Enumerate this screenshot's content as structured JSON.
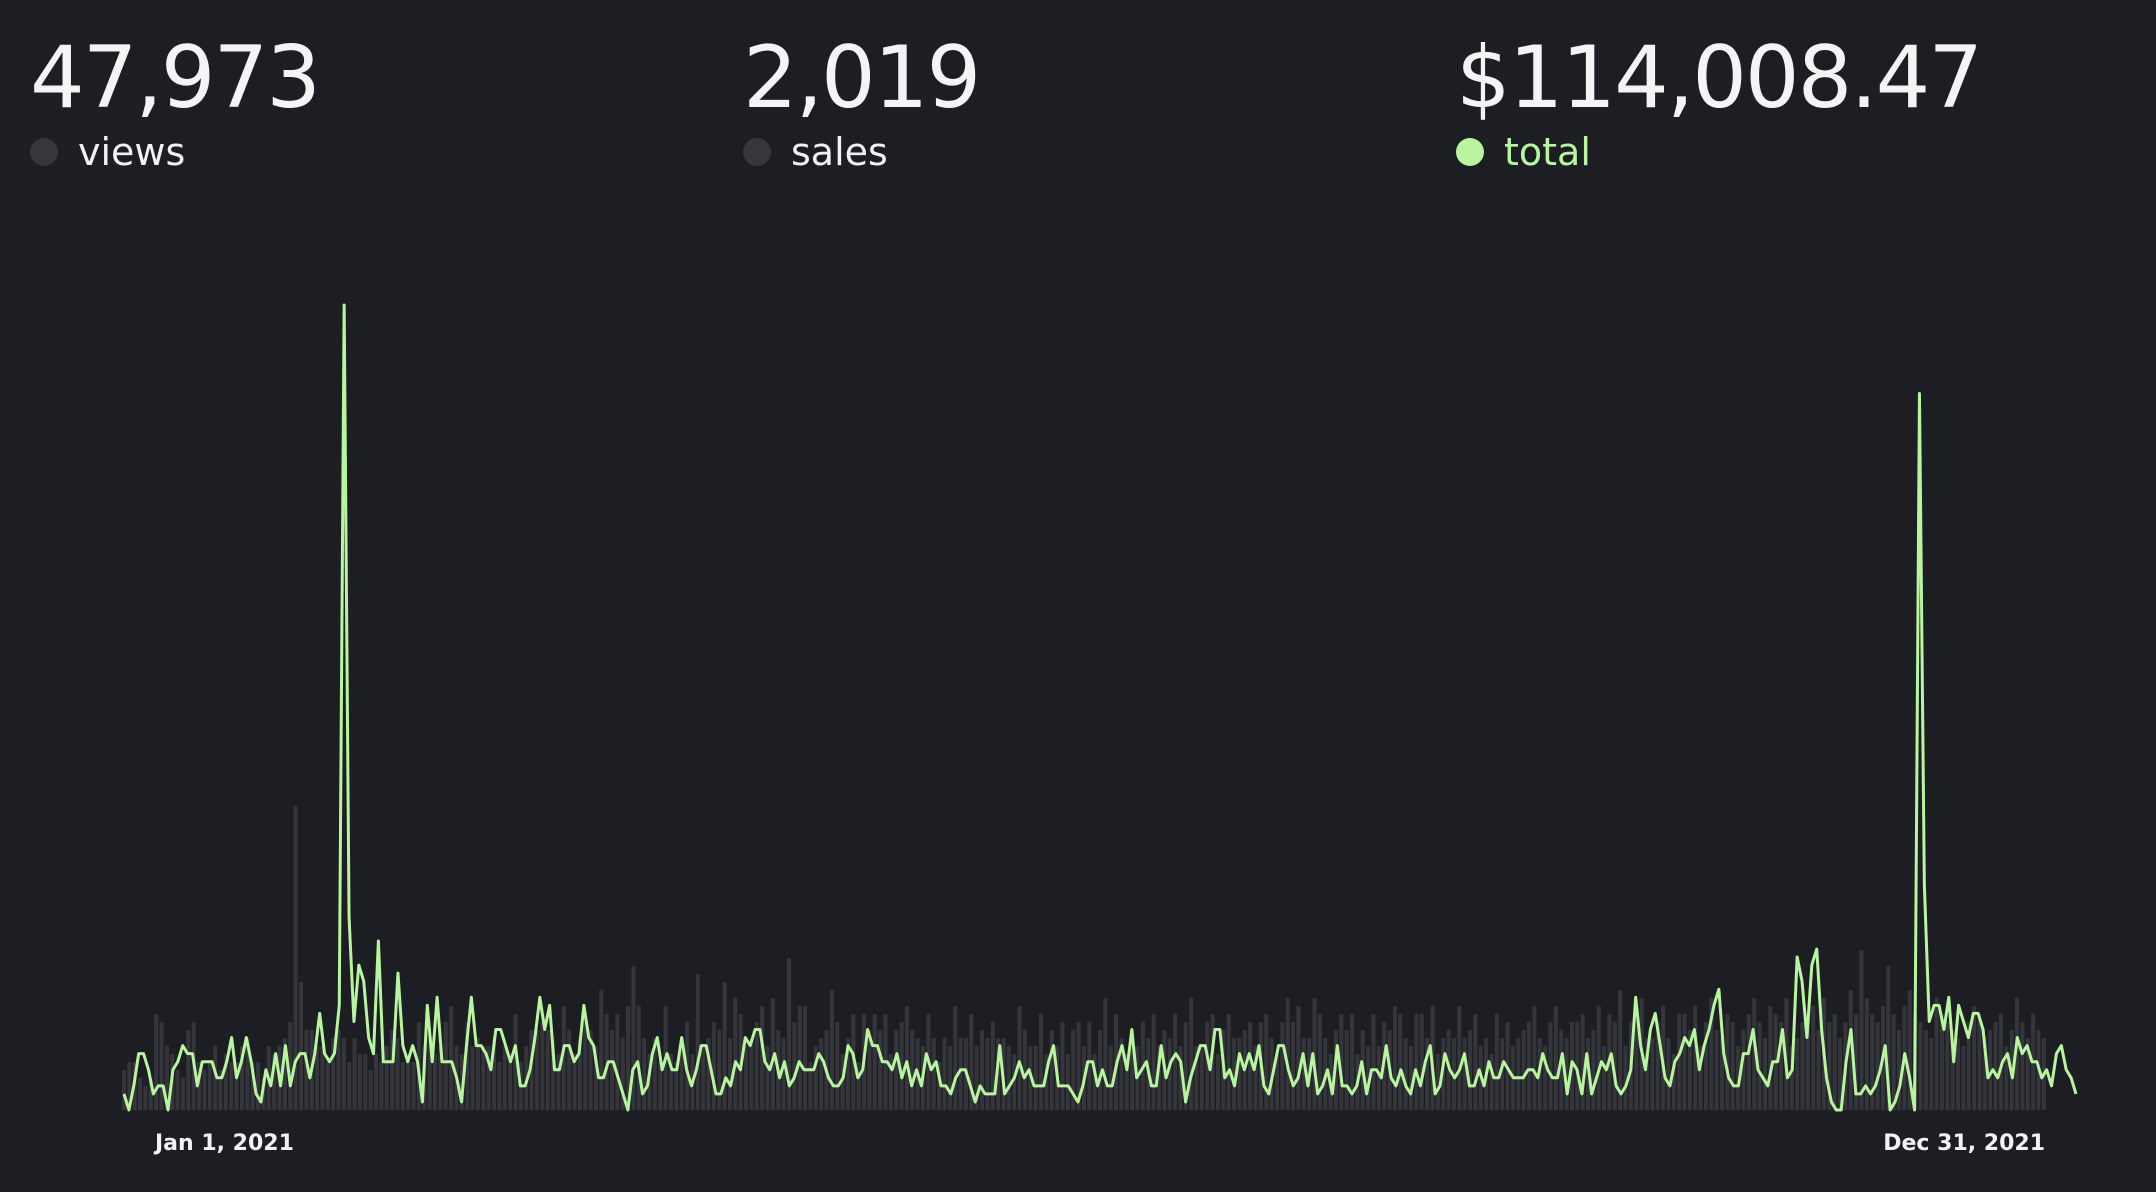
{
  "stats": [
    {
      "value": "47,973",
      "label": "views",
      "active": false
    },
    {
      "value": "2,019",
      "label": "sales",
      "active": false
    },
    {
      "value": "$114,008.47",
      "label": "total",
      "active": true
    }
  ],
  "colors": {
    "background": "#1c1e23",
    "inactive_dot": "#35373d",
    "accent": "#b9f59f",
    "bars": "#34363b",
    "text": "#f2f2f2"
  },
  "chart_data": {
    "type": "bar+line",
    "title": "",
    "x_range": [
      "Jan 1, 2021",
      "Dec 31, 2021"
    ],
    "x_tick_labels": [
      "Jan 1, 2021",
      "Dec 31, 2021"
    ],
    "grid": false,
    "days": 365,
    "views_bars": [
      5,
      6,
      6,
      4,
      3,
      4,
      12,
      11,
      8,
      7,
      5,
      4,
      10,
      11,
      6,
      5,
      6,
      8,
      5,
      7,
      6,
      6,
      8,
      9,
      6,
      6,
      4,
      8,
      7,
      8,
      9,
      11,
      38,
      16,
      10,
      10,
      8,
      8,
      6,
      9,
      10,
      9,
      6,
      9,
      7,
      7,
      5,
      7,
      6,
      8,
      10,
      9,
      6,
      7,
      6,
      11,
      8,
      9,
      7,
      8,
      11,
      13,
      8,
      7,
      11,
      8,
      9,
      8,
      8,
      9,
      6,
      8,
      6,
      12,
      6,
      8,
      10,
      10,
      11,
      10,
      9,
      7,
      13,
      10,
      7,
      9,
      12,
      10,
      8,
      15,
      12,
      10,
      12,
      9,
      13,
      18,
      13,
      9,
      7,
      9,
      6,
      13,
      7,
      6,
      8,
      11,
      7,
      17,
      8,
      9,
      11,
      10,
      16,
      9,
      14,
      12,
      8,
      9,
      11,
      13,
      8,
      14,
      10,
      9,
      19,
      11,
      13,
      13,
      6,
      8,
      9,
      10,
      15,
      11,
      7,
      9,
      12,
      6,
      12,
      10,
      12,
      10,
      12,
      7,
      10,
      11,
      13,
      10,
      9,
      8,
      12,
      9,
      6,
      9,
      8,
      13,
      9,
      9,
      12,
      8,
      10,
      9,
      11,
      9,
      9,
      8,
      7,
      13,
      10,
      8,
      8,
      12,
      7,
      10,
      8,
      11,
      7,
      10,
      11,
      8,
      11,
      7,
      10,
      14,
      8,
      12,
      9,
      7,
      10,
      8,
      11,
      9,
      12,
      8,
      10,
      9,
      12,
      8,
      11,
      14,
      8,
      8,
      11,
      12,
      7,
      10,
      12,
      9,
      9,
      10,
      11,
      8,
      11,
      12,
      9,
      7,
      11,
      14,
      11,
      13,
      9,
      9,
      14,
      12,
      9,
      7,
      10,
      12,
      10,
      12,
      7,
      10,
      8,
      12,
      8,
      11,
      10,
      13,
      12,
      9,
      8,
      12,
      12,
      9,
      13,
      7,
      9,
      10,
      9,
      13,
      9,
      10,
      12,
      8,
      9,
      7,
      12,
      9,
      11,
      8,
      9,
      10,
      11,
      13,
      9,
      8,
      11,
      13,
      10,
      9,
      11,
      11,
      12,
      9,
      10,
      13,
      8,
      12,
      11,
      15,
      8,
      11,
      12,
      14,
      9,
      9,
      11,
      13,
      9,
      7,
      12,
      12,
      10,
      13,
      8,
      11,
      14,
      10,
      9,
      12,
      11,
      8,
      10,
      12,
      14,
      11,
      9,
      13,
      12,
      11,
      14,
      8,
      9,
      11,
      12,
      13,
      10,
      14,
      11,
      12,
      9,
      11,
      15,
      12,
      20,
      14,
      12,
      11,
      13,
      18,
      12,
      10,
      13,
      15,
      12,
      11,
      10,
      9,
      14,
      12,
      11,
      10,
      9,
      8,
      11,
      13,
      12,
      9,
      10,
      11,
      12,
      8,
      10,
      14,
      11,
      9,
      12,
      10,
      9
    ],
    "total_line": [
      2,
      0,
      3,
      7,
      7,
      5,
      2,
      3,
      3,
      0,
      5,
      6,
      8,
      7,
      7,
      3,
      6,
      6,
      6,
      4,
      4,
      6,
      9,
      4,
      6,
      9,
      6,
      2,
      1,
      5,
      3,
      7,
      3,
      8,
      3,
      6,
      7,
      7,
      4,
      7,
      12,
      7,
      6,
      7,
      13,
      100,
      24,
      11,
      18,
      16,
      9,
      7,
      21,
      6,
      6,
      6,
      17,
      8,
      6,
      8,
      6,
      1,
      13,
      6,
      14,
      6,
      6,
      6,
      4,
      1,
      8,
      14,
      8,
      8,
      7,
      5,
      10,
      10,
      8,
      6,
      8,
      3,
      3,
      5,
      9,
      14,
      10,
      13,
      5,
      5,
      8,
      8,
      6,
      7,
      13,
      9,
      8,
      4,
      4,
      6,
      6,
      4,
      2,
      0,
      5,
      6,
      2,
      3,
      7,
      9,
      5,
      7,
      5,
      5,
      9,
      5,
      3,
      5,
      8,
      8,
      5,
      2,
      2,
      4,
      3,
      6,
      5,
      9,
      8,
      10,
      10,
      6,
      5,
      7,
      4,
      6,
      3,
      4,
      6,
      5,
      5,
      5,
      7,
      6,
      4,
      3,
      3,
      4,
      8,
      7,
      4,
      5,
      10,
      8,
      8,
      6,
      6,
      5,
      7,
      4,
      6,
      3,
      5,
      3,
      7,
      5,
      6,
      3,
      3,
      2,
      4,
      5,
      5,
      3,
      1,
      3,
      2,
      2,
      2,
      8,
      2,
      3,
      4,
      6,
      4,
      5,
      3,
      3,
      3,
      6,
      8,
      3,
      3,
      3,
      2,
      1,
      3,
      6,
      6,
      3,
      5,
      3,
      3,
      6,
      8,
      5,
      10,
      4,
      5,
      6,
      3,
      3,
      8,
      4,
      6,
      7,
      6,
      1,
      4,
      6,
      8,
      8,
      5,
      10,
      10,
      4,
      5,
      3,
      7,
      5,
      7,
      5,
      8,
      3,
      2,
      5,
      8,
      8,
      5,
      3,
      4,
      7,
      3,
      7,
      2,
      3,
      5,
      2,
      8,
      3,
      3,
      2,
      3,
      6,
      2,
      5,
      5,
      4,
      8,
      4,
      3,
      5,
      3,
      2,
      5,
      3,
      6,
      8,
      2,
      3,
      7,
      5,
      4,
      5,
      7,
      3,
      3,
      5,
      3,
      6,
      4,
      4,
      6,
      5,
      4,
      4,
      4,
      5,
      5,
      4,
      7,
      5,
      4,
      4,
      7,
      2,
      6,
      5,
      2,
      7,
      2,
      4,
      6,
      5,
      7,
      3,
      2,
      3,
      5,
      14,
      8,
      5,
      10,
      12,
      8,
      4,
      3,
      6,
      7,
      9,
      8,
      10,
      5,
      8,
      10,
      13,
      15,
      7,
      4,
      3,
      3,
      7,
      7,
      10,
      5,
      4,
      3,
      6,
      6,
      10,
      4,
      5,
      19,
      16,
      9,
      18,
      20,
      10,
      4,
      1,
      0,
      0,
      6,
      10,
      2,
      2,
      3,
      2,
      3,
      5,
      8,
      0,
      1,
      3,
      7,
      4,
      0,
      89,
      28,
      11,
      13,
      13,
      10,
      14,
      6,
      13,
      11,
      9,
      12,
      12,
      10,
      4,
      5,
      4,
      6,
      7,
      4,
      9,
      7,
      8,
      6,
      6,
      4,
      5,
      3,
      7,
      8,
      5,
      4,
      2
    ]
  }
}
